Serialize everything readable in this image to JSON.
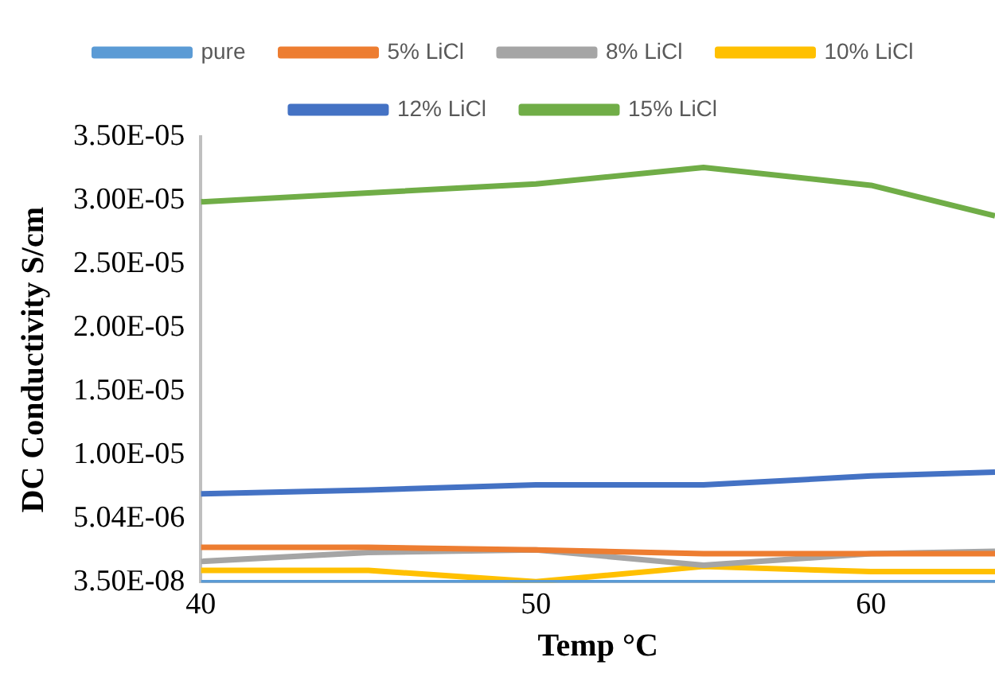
{
  "chart_data": {
    "type": "line",
    "xlabel": "Temp °C",
    "ylabel": "DC Conductivity S/cm",
    "x": [
      40,
      45,
      50,
      55,
      60,
      63.7
    ],
    "series": [
      {
        "name": "pure",
        "color": "#5b9bd5",
        "values": [
          3.5e-08,
          3.5e-08,
          3.5e-08,
          3.5e-08,
          3.5e-08,
          3.5e-08
        ]
      },
      {
        "name": "5% LiCl",
        "color": "#ed7d31",
        "values": [
          2.8e-06,
          2.8e-06,
          2.6e-06,
          2.3e-06,
          2.3e-06,
          2.3e-06
        ]
      },
      {
        "name": "8% LiCl",
        "color": "#a5a5a5",
        "values": [
          1.7e-06,
          2.4e-06,
          2.6e-06,
          1.4e-06,
          2.3e-06,
          2.5e-06
        ]
      },
      {
        "name": "10% LiCl",
        "color": "#ffc000",
        "values": [
          1e-06,
          1e-06,
          1e-07,
          1.3e-06,
          9e-07,
          9e-07
        ]
      },
      {
        "name": "12% LiCl",
        "color": "#4472c4",
        "values": [
          7e-06,
          7.3e-06,
          7.7e-06,
          7.7e-06,
          8.4e-06,
          8.7e-06
        ]
      },
      {
        "name": "15% LiCl",
        "color": "#70ad47",
        "values": [
          2.99e-05,
          3.06e-05,
          3.13e-05,
          3.26e-05,
          3.12e-05,
          2.88e-05
        ]
      }
    ],
    "xlim": [
      40,
      63.7
    ],
    "xticks": [
      40,
      50,
      60
    ],
    "ylim": [
      3.5e-08,
      3.5e-05
    ],
    "yticks": [
      {
        "value": 3.5e-08,
        "label": "3.50E-08"
      },
      {
        "value": 5.035e-06,
        "label": "5.04E-06"
      },
      {
        "value": 1.0035e-05,
        "label": "1.00E-05"
      },
      {
        "value": 1.5035e-05,
        "label": "1.50E-05"
      },
      {
        "value": 2.0035e-05,
        "label": "2.00E-05"
      },
      {
        "value": 2.5035e-05,
        "label": "2.50E-05"
      },
      {
        "value": 3.0035e-05,
        "label": "3.00E-05"
      },
      {
        "value": 3.5e-05,
        "label": "3.50E-05"
      }
    ],
    "grid": false,
    "legend": "top",
    "marker": "none",
    "line_style": "solid"
  }
}
